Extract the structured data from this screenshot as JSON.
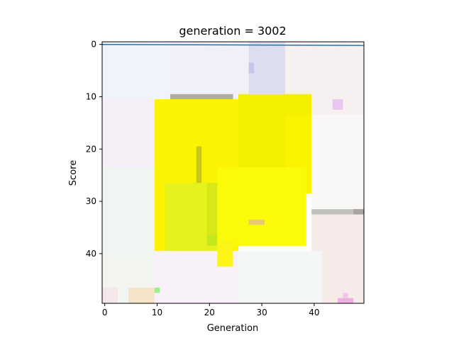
{
  "chart_data": {
    "type": "heatmap",
    "title": "generation = 3002",
    "xlabel": "Generation",
    "ylabel": "Score",
    "xlim": [
      -0.5,
      49.5
    ],
    "ylim": [
      49.5,
      -0.5
    ],
    "x_ticks": [
      0,
      10,
      20,
      30,
      40
    ],
    "y_ticks": [
      0,
      10,
      20,
      30,
      40
    ],
    "x_tick_labels": [
      "0",
      "10",
      "20",
      "30",
      "40"
    ],
    "y_tick_labels": [
      "0",
      "10",
      "20",
      "30",
      "40"
    ],
    "grid": false,
    "legend": "none",
    "line_color": "#1f77b4",
    "line_series": {
      "x": [
        -0.5,
        49.5
      ],
      "y": [
        0.0,
        0.2
      ]
    },
    "patches": [
      {
        "x0": -0.5,
        "x1": 25.5,
        "y0": -0.5,
        "y1": 10.5,
        "color": "#f1f3fb"
      },
      {
        "x0": 12.5,
        "x1": 27.5,
        "y0": -0.5,
        "y1": 10.5,
        "color": "#eff0f8"
      },
      {
        "x0": 27.5,
        "x1": 34.5,
        "y0": -0.5,
        "y1": 9.5,
        "color": "#dcdeef"
      },
      {
        "x0": 34.5,
        "x1": 49.5,
        "y0": -0.5,
        "y1": 13.5,
        "color": "#f6f0f0"
      },
      {
        "x0": 27.5,
        "x1": 28.5,
        "y0": 3.5,
        "y1": 5.5,
        "color": "#c8c4ea"
      },
      {
        "x0": 43.5,
        "x1": 45.5,
        "y0": 10.5,
        "y1": 12.5,
        "color": "#e8c8f0"
      },
      {
        "x0": -0.5,
        "x1": 9.5,
        "y0": 10.5,
        "y1": 23.5,
        "color": "#f6eff8"
      },
      {
        "x0": -0.5,
        "x1": 9.5,
        "y0": 23.5,
        "y1": 40.5,
        "color": "#f1f5f2"
      },
      {
        "x0": -0.5,
        "x1": 10.5,
        "y0": 40.5,
        "y1": 49.5,
        "color": "#f3f6f0"
      },
      {
        "x0": 9.5,
        "x1": 25.5,
        "y0": 39.5,
        "y1": 49.5,
        "color": "#f9f1f9"
      },
      {
        "x0": -0.5,
        "x1": 2.5,
        "y0": 46.5,
        "y1": 49.5,
        "color": "#f5e6ea"
      },
      {
        "x0": 4.5,
        "x1": 9.5,
        "y0": 46.5,
        "y1": 49.5,
        "color": "#f6e4c8"
      },
      {
        "x0": 9.5,
        "x1": 10.5,
        "y0": 46.5,
        "y1": 47.5,
        "color": "#9ff08a"
      },
      {
        "x0": 39.5,
        "x1": 49.5,
        "y0": 13.5,
        "y1": 31.5,
        "color": "#f9f7f6"
      },
      {
        "x0": 39.5,
        "x1": 49.5,
        "y0": 31.5,
        "y1": 49.5,
        "color": "#f6ebe8"
      },
      {
        "x0": 45.5,
        "x1": 46.5,
        "y0": 47.5,
        "y1": 48.5,
        "color": "#f0c8e8"
      },
      {
        "x0": 44.5,
        "x1": 47.5,
        "y0": 48.5,
        "y1": 49.5,
        "color": "#eeb0e0"
      },
      {
        "x0": 25.5,
        "x1": 41.5,
        "y0": 39.5,
        "y1": 49.5,
        "color": "#f3f6f6"
      },
      {
        "x0": 12.5,
        "x1": 24.5,
        "y0": 9.5,
        "y1": 10.5,
        "color": "#b0aca0"
      },
      {
        "x0": 39.5,
        "x1": 49.5,
        "y0": 31.5,
        "y1": 32.5,
        "color": "#c0c0bc"
      },
      {
        "x0": 47.5,
        "x1": 49.5,
        "y0": 31.5,
        "y1": 32.5,
        "color": "#a8a4a0"
      },
      {
        "x0": 9.5,
        "x1": 25.5,
        "y0": 10.5,
        "y1": 39.5,
        "color": "#fbf204"
      },
      {
        "x0": 25.5,
        "x1": 39.5,
        "y0": 9.5,
        "y1": 28.5,
        "color": "#f4f000"
      },
      {
        "x0": 34.5,
        "x1": 39.5,
        "y0": 13.5,
        "y1": 28.5,
        "color": "#fbf400"
      },
      {
        "x0": 11.5,
        "x1": 22.5,
        "y0": 26.5,
        "y1": 39.5,
        "color": "#e6f21e"
      },
      {
        "x0": 17.5,
        "x1": 18.5,
        "y0": 19.5,
        "y1": 26.5,
        "color": "#c8c81c"
      },
      {
        "x0": 19.5,
        "x1": 22.5,
        "y0": 26.5,
        "y1": 37.5,
        "color": "#d6e81a"
      },
      {
        "x0": 19.5,
        "x1": 21.5,
        "y0": 36.5,
        "y1": 38.5,
        "color": "#c4e81e"
      },
      {
        "x0": 21.5,
        "x1": 38.5,
        "y0": 23.5,
        "y1": 38.5,
        "color": "#fbfa08"
      },
      {
        "x0": 21.5,
        "x1": 24.5,
        "y0": 37.5,
        "y1": 42.5,
        "color": "#fbf414"
      },
      {
        "x0": 27.5,
        "x1": 30.5,
        "y0": 33.5,
        "y1": 34.5,
        "color": "#e8c870"
      }
    ]
  }
}
